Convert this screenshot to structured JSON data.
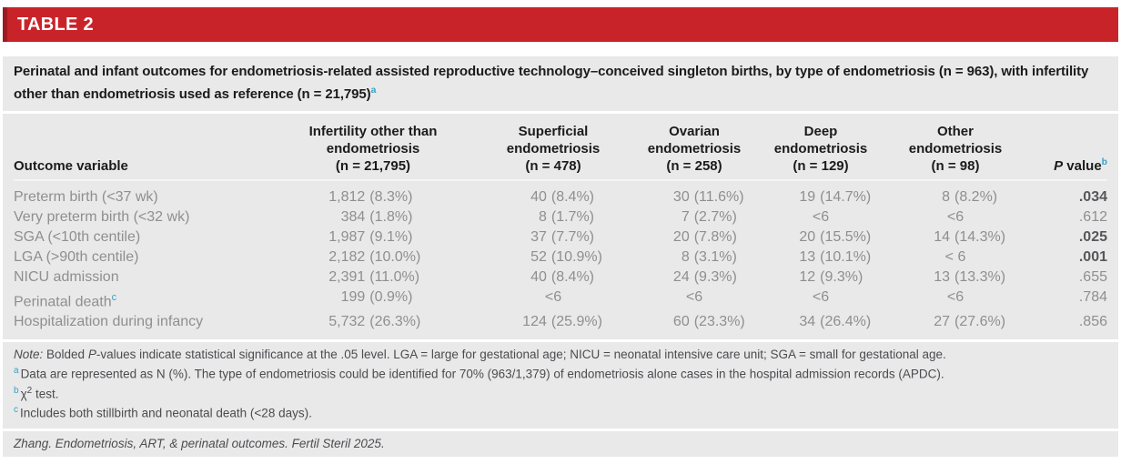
{
  "colors": {
    "banner_red": "#C9232A",
    "banner_red_edge": "#9C1B21",
    "panel_gray": "#E9E9EA",
    "heading_text": "#1B1B1C",
    "body_text": "#8F8F91",
    "note_text": "#4B4C4E",
    "superscript_teal": "#33A3C4"
  },
  "banner": {
    "label": "TABLE 2"
  },
  "title": {
    "text": "Perinatal and infant outcomes for endometriosis-related assisted reproductive technology–conceived singleton births, by type of endometriosis (n = 963), with infertility other than endometriosis used as reference (n = 21,795)",
    "sup": "a"
  },
  "table": {
    "outcome_header": "Outcome variable",
    "columns": [
      {
        "label": "Infertility other than endometriosis",
        "n": "(n = 21,795)"
      },
      {
        "label": "Superficial endometriosis",
        "n": "(n = 478)"
      },
      {
        "label": "Ovarian endometriosis",
        "n": "(n = 258)"
      },
      {
        "label": "Deep endometriosis",
        "n": "(n = 129)"
      },
      {
        "label": "Other endometriosis",
        "n": "(n = 98)"
      }
    ],
    "p_header": {
      "italic": "P",
      "rest": " value",
      "sup": "b"
    },
    "rows": [
      {
        "outcome": "Preterm birth (<37 wk)",
        "values": [
          "1,812 (8.3%)",
          "40 (8.4%)",
          "30 (11.6%)",
          "19 (14.7%)",
          "8 (8.2%)"
        ],
        "p": ".034",
        "p_bold": true
      },
      {
        "outcome": "Very preterm birth (<32 wk)",
        "values": [
          "384 (1.8%)",
          "8 (1.7%)",
          "7 (2.7%)",
          "<6",
          "<6"
        ],
        "p": ".612",
        "p_bold": false
      },
      {
        "outcome": "SGA (<10th centile)",
        "values": [
          "1,987 (9.1%)",
          "37 (7.7%)",
          "20 (7.8%)",
          "20 (15.5%)",
          "14 (14.3%)"
        ],
        "p": ".025",
        "p_bold": true
      },
      {
        "outcome": "LGA (>90th centile)",
        "values": [
          "2,182 (10.0%)",
          "52 (10.9%)",
          "8 (3.1%)",
          "13 (10.1%)",
          "< 6"
        ],
        "p": ".001",
        "p_bold": true
      },
      {
        "outcome": "NICU admission",
        "values": [
          "2,391 (11.0%)",
          "40 (8.4%)",
          "24 (9.3%)",
          "12 (9.3%)",
          "13 (13.3%)"
        ],
        "p": ".655",
        "p_bold": false
      },
      {
        "outcome": "Perinatal death",
        "outcome_sup": "c",
        "values": [
          "199 (0.9%)",
          "<6",
          "<6",
          "<6",
          "<6"
        ],
        "p": ".784",
        "p_bold": false
      },
      {
        "outcome": "Hospitalization during infancy",
        "values": [
          "5,732 (26.3%)",
          "124 (25.9%)",
          "60 (23.3%)",
          "34 (26.4%)",
          "27 (27.6%)"
        ],
        "p": ".856",
        "p_bold": false
      }
    ]
  },
  "notes": {
    "note_label": "Note:",
    "note_pre": " Bolded ",
    "note_p": "P",
    "note_post": "-values indicate statistical significance at the .05 level. LGA = large for gestational age; NICU = neonatal intensive care unit; SGA = small for gestational age.",
    "fn_a": {
      "sup": "a",
      "text": "Data are represented as N (%). The type of endometriosis could be identified for 70% (963/1,379) of endometriosis alone cases in the hospital admission records (APDC)."
    },
    "fn_b": {
      "sup": "b",
      "chi": "χ",
      "exp": "2",
      "text": " test."
    },
    "fn_c": {
      "sup": "c",
      "text": "Includes both stillbirth and neonatal death (<28 days)."
    }
  },
  "citation": "Zhang. Endometriosis, ART, & perinatal outcomes. Fertil Steril 2025."
}
